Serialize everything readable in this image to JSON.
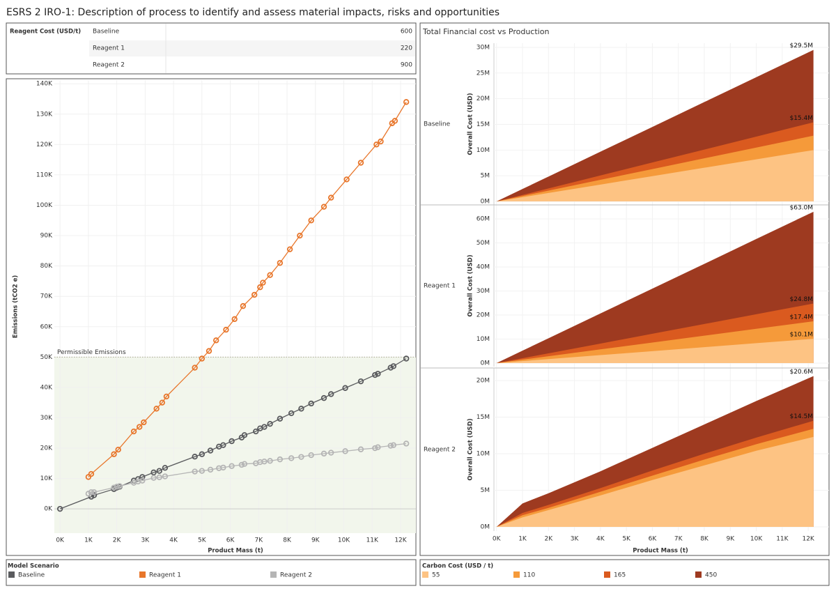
{
  "title": "ESRS 2 IRO-1: Description of process to identify and assess material impacts, risks and opportunities",
  "table": {
    "header": "Reagent Cost (USD/t)",
    "rows": [
      [
        "Baseline",
        600
      ],
      [
        "Reagent 1",
        220
      ],
      [
        "Reagent 2",
        900
      ]
    ]
  },
  "chart_data": [
    {
      "type": "scatter",
      "y_label": "Emissions (tCO2 e)",
      "x_label": "Product Mass (t)",
      "xlim": [
        -200,
        12540
      ],
      "xticks": [
        {
          "value": 0,
          "label": "0K"
        },
        {
          "value": 1000,
          "label": "1K"
        },
        {
          "value": 2000,
          "label": "2K"
        },
        {
          "value": 3000,
          "label": "3K"
        },
        {
          "value": 4000,
          "label": "4K"
        },
        {
          "value": 5000,
          "label": "5K"
        },
        {
          "value": 6000,
          "label": "6K"
        },
        {
          "value": 7000,
          "label": "7K"
        },
        {
          "value": 8000,
          "label": "8K"
        },
        {
          "value": 9000,
          "label": "9K"
        },
        {
          "value": 10000,
          "label": "10K"
        },
        {
          "value": 11000,
          "label": "11K"
        },
        {
          "value": 12000,
          "label": "12K"
        }
      ],
      "ylim": [
        -8000,
        141200
      ],
      "yticks": [
        {
          "value": 0,
          "label": "0K"
        },
        {
          "value": 10000,
          "label": "10K"
        },
        {
          "value": 20000,
          "label": "20K"
        },
        {
          "value": 30000,
          "label": "30K"
        },
        {
          "value": 40000,
          "label": "40K"
        },
        {
          "value": 50000,
          "label": "50K"
        },
        {
          "value": 60000,
          "label": "60K"
        },
        {
          "value": 70000,
          "label": "70K"
        },
        {
          "value": 80000,
          "label": "80K"
        },
        {
          "value": 90000,
          "label": "90K"
        },
        {
          "value": 100000,
          "label": "100K"
        },
        {
          "value": 110000,
          "label": "110K"
        },
        {
          "value": 120000,
          "label": "120K"
        },
        {
          "value": 130000,
          "label": "130K"
        },
        {
          "value": 140000,
          "label": "140K"
        }
      ],
      "threshold": {
        "value": 50000,
        "label": "Permissible Emissions"
      },
      "legend_title": "Model Scenario",
      "series": [
        {
          "name": "Baseline",
          "color": "#5a5b5e",
          "x": [
            0,
            1100,
            1200,
            1900,
            2000,
            2100,
            2600,
            2750,
            2900,
            3300,
            3500,
            3700,
            4750,
            5000,
            5300,
            5600,
            5750,
            6050,
            6400,
            6500,
            6900,
            7050,
            7200,
            7400,
            7750,
            8150,
            8500,
            8850,
            9300,
            9550,
            10050,
            10600,
            11100,
            11200,
            11650,
            11750,
            12200
          ],
          "values": [
            0,
            4000,
            4500,
            6500,
            7000,
            7300,
            9300,
            9800,
            10500,
            12000,
            12500,
            13500,
            17200,
            18000,
            19200,
            20500,
            21000,
            22300,
            23500,
            24300,
            25500,
            26500,
            27000,
            28000,
            29700,
            31500,
            33000,
            34700,
            36500,
            37800,
            39800,
            42000,
            44100,
            44500,
            46500,
            47000,
            49500
          ]
        },
        {
          "name": "Reagent 1",
          "color": "#e8762b",
          "x": [
            1000,
            1100,
            1900,
            2050,
            2600,
            2800,
            2950,
            3400,
            3600,
            3750,
            4750,
            5000,
            5250,
            5500,
            5850,
            6150,
            6450,
            6850,
            7050,
            7150,
            7400,
            7750,
            8100,
            8450,
            8850,
            9300,
            9550,
            10100,
            10600,
            11150,
            11300,
            11700,
            11800,
            12200
          ],
          "values": [
            10500,
            11500,
            18000,
            19500,
            25500,
            27000,
            28500,
            33000,
            35000,
            37000,
            46500,
            49500,
            52000,
            55500,
            59000,
            62500,
            66800,
            70500,
            73000,
            74500,
            77000,
            81000,
            85500,
            90000,
            95000,
            99500,
            102500,
            108500,
            114000,
            120000,
            121000,
            127000,
            127800,
            134000
          ]
        },
        {
          "name": "Reagent 2",
          "color": "#b5b5b5",
          "x": [
            1000,
            1100,
            1200,
            1900,
            2000,
            2100,
            2600,
            2750,
            2900,
            3300,
            3500,
            3700,
            4750,
            5000,
            5300,
            5600,
            5750,
            6050,
            6400,
            6500,
            6900,
            7050,
            7200,
            7400,
            7750,
            8150,
            8500,
            8850,
            9300,
            9550,
            10050,
            10600,
            11100,
            11200,
            11650,
            11750,
            12200
          ],
          "values": [
            5000,
            5500,
            5500,
            7000,
            7300,
            7500,
            8600,
            9000,
            9300,
            10200,
            10400,
            10700,
            12300,
            12500,
            12900,
            13400,
            13600,
            14100,
            14500,
            14800,
            15000,
            15400,
            15600,
            15800,
            16300,
            16700,
            17100,
            17700,
            18200,
            18500,
            19000,
            19600,
            20000,
            20300,
            20800,
            21000,
            21500
          ]
        }
      ]
    },
    {
      "type": "area",
      "title": "Total Financial cost vs Production",
      "x_label": "Product Mass (t)",
      "xlim": [
        -100,
        12800
      ],
      "xticks": [
        {
          "value": 0,
          "label": "0K"
        },
        {
          "value": 1000,
          "label": "1K"
        },
        {
          "value": 2000,
          "label": "2K"
        },
        {
          "value": 3000,
          "label": "3K"
        },
        {
          "value": 4000,
          "label": "4K"
        },
        {
          "value": 5000,
          "label": "5K"
        },
        {
          "value": 6000,
          "label": "6K"
        },
        {
          "value": 7000,
          "label": "7K"
        },
        {
          "value": 8000,
          "label": "8K"
        },
        {
          "value": 9000,
          "label": "9K"
        },
        {
          "value": 10000,
          "label": "10K"
        },
        {
          "value": 11000,
          "label": "11K"
        },
        {
          "value": 12000,
          "label": "12K"
        }
      ],
      "x": [
        0,
        1000,
        2000,
        4000,
        6000,
        8000,
        10000,
        12200
      ],
      "legend_title": "Carbon Cost (USD / t)",
      "legend": [
        {
          "name": "55",
          "color": "#fdc383"
        },
        {
          "name": "110",
          "color": "#f59a3a"
        },
        {
          "name": "165",
          "color": "#da5a1f"
        },
        {
          "name": "450",
          "color": "#9e3a20"
        }
      ],
      "panels": [
        {
          "row_label": "Baseline",
          "y_label": "Overall Cost (USD)",
          "ylim": [
            -680000,
            30810000
          ],
          "yticks": [
            {
              "value": 0,
              "label": "0M"
            },
            {
              "value": 5000000,
              "label": "5M"
            },
            {
              "value": 10000000,
              "label": "10M"
            },
            {
              "value": 15000000,
              "label": "15M"
            },
            {
              "value": 20000000,
              "label": "20M"
            },
            {
              "value": 25000000,
              "label": "25M"
            },
            {
              "value": 30000000,
              "label": "30M"
            }
          ],
          "series": [
            {
              "values": [
                0,
                820000,
                1640000,
                3280000,
                4920000,
                6560000,
                8200000,
                10000000
              ]
            },
            {
              "values": [
                0,
                1050000,
                2100000,
                4200000,
                6300000,
                8400000,
                10490000,
                12800000
              ]
            },
            {
              "values": [
                0,
                1260000,
                2530000,
                5050000,
                7580000,
                10100000,
                12630000,
                15400000
              ],
              "end_label": "$15.4M"
            },
            {
              "values": [
                0,
                2420000,
                4840000,
                9680000,
                14510000,
                19350000,
                24190000,
                29500000
              ],
              "end_label": "$29.5M"
            }
          ]
        },
        {
          "row_label": "Reagent 1",
          "y_label": "Overall Cost (USD)",
          "ylim": [
            -1460000,
            65850000
          ],
          "yticks": [
            {
              "value": 0,
              "label": "0M"
            },
            {
              "value": 10000000,
              "label": "10M"
            },
            {
              "value": 20000000,
              "label": "20M"
            },
            {
              "value": 30000000,
              "label": "30M"
            },
            {
              "value": 40000000,
              "label": "40M"
            },
            {
              "value": 50000000,
              "label": "50M"
            },
            {
              "value": 60000000,
              "label": "60M"
            }
          ],
          "series": [
            {
              "values": [
                0,
                830000,
                1660000,
                3310000,
                4970000,
                6630000,
                8280000,
                10100000
              ],
              "end_label": "$10.1M"
            },
            {
              "values": [
                0,
                1430000,
                2850000,
                5710000,
                8560000,
                11410000,
                14270000,
                17400000
              ],
              "end_label": "$17.4M"
            },
            {
              "values": [
                0,
                2030000,
                4070000,
                8130000,
                12200000,
                16270000,
                20340000,
                24800000
              ],
              "end_label": "$24.8M"
            },
            {
              "values": [
                0,
                5170000,
                10330000,
                20660000,
                31000000,
                41310000,
                51660000,
                63000000
              ],
              "end_label": "$63.0M"
            }
          ]
        },
        {
          "row_label": "Reagent 2",
          "y_label": "Overall Cost (USD)",
          "ylim": [
            -570000,
            21710000
          ],
          "yticks": [
            {
              "value": 0,
              "label": "0M"
            },
            {
              "value": 5000000,
              "label": "5M"
            },
            {
              "value": 10000000,
              "label": "10M"
            },
            {
              "value": 15000000,
              "label": "15M"
            },
            {
              "value": 20000000,
              "label": "20M"
            }
          ],
          "series": [
            {
              "values": [
                0,
                1300000,
                2300000,
                4300000,
                6400000,
                8400000,
                10400000,
                12300000
              ]
            },
            {
              "values": [
                0,
                1600000,
                2600000,
                4800000,
                7000000,
                9200000,
                11300000,
                13400000
              ]
            },
            {
              "values": [
                0,
                1900000,
                3000000,
                5300000,
                7700000,
                10000000,
                12200000,
                14500000
              ],
              "end_label": "$14.5M"
            },
            {
              "values": [
                0,
                3200000,
                4600000,
                7600000,
                10800000,
                14000000,
                17200000,
                20600000
              ],
              "end_label": "$20.6M"
            }
          ]
        }
      ]
    }
  ]
}
